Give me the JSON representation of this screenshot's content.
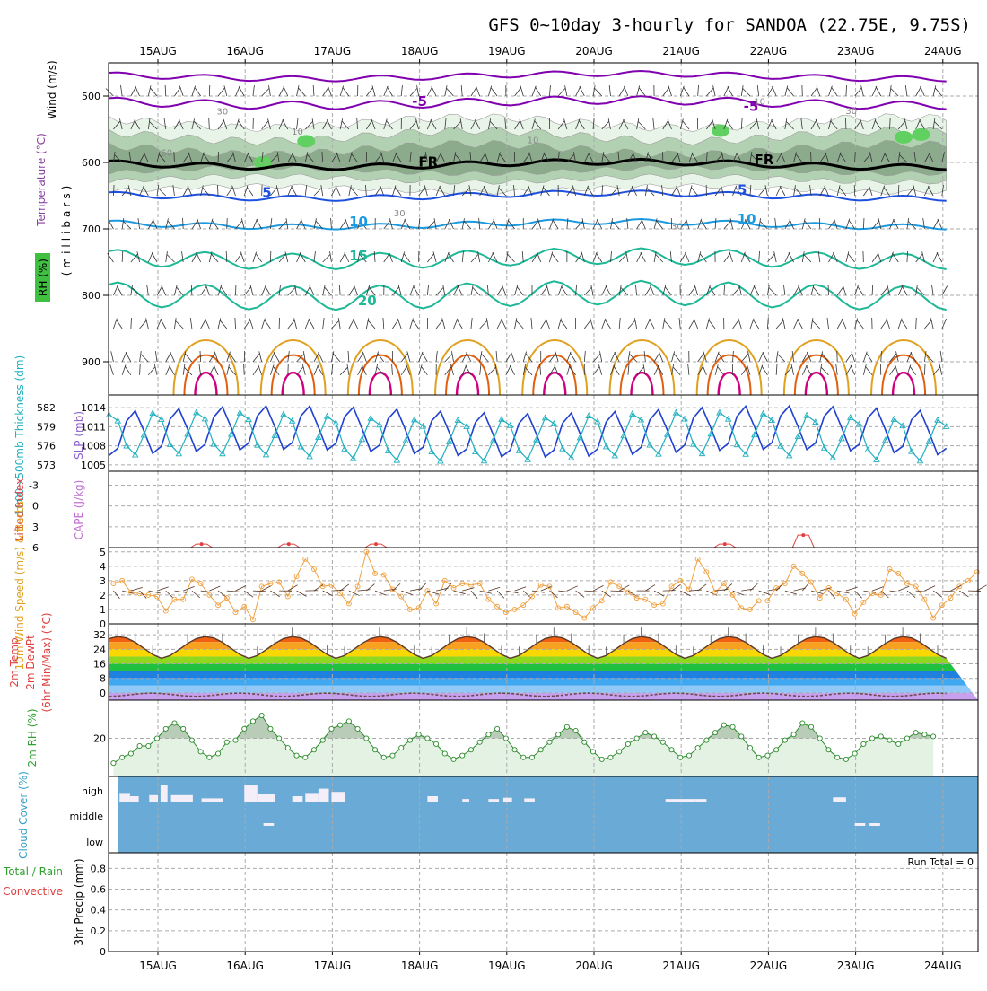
{
  "title": "GFS 0~10day 3-hourly for SANDOA (22.75E, 9.75S)",
  "dates": [
    "15AUG",
    "16AUG",
    "17AUG",
    "18AUG",
    "19AUG",
    "20AUG",
    "21AUG",
    "22AUG",
    "23AUG",
    "24AUG"
  ],
  "colors": {
    "purple": "#8000b0",
    "freeze": "#000000",
    "blue": "#1e50e0",
    "sky": "#1c9ae0",
    "teal": "#1eb896",
    "orange": "#e0a020",
    "darkorange": "#e06010",
    "magenta": "#d00080",
    "rh_light": "#e8f4e8",
    "rh_mid": "#b0d0b0",
    "rh_dark": "#8aaa8a",
    "rh_green": "#60d060",
    "slp": "#2040d0",
    "thick": "#20b0c0",
    "wind": "#f0a040",
    "li": "#e04040",
    "cloud": "#6aaad6",
    "cloud_bar": "#f4eef8",
    "rh2m": "#2a8a2a"
  },
  "chart_data": [
    {
      "type": "contour",
      "panel": "upper-air",
      "ylabel": "(millibars)",
      "side_labels": [
        "Wind (m/s)",
        "Temperature (°C)",
        "RH (%)"
      ],
      "yticks": [
        500,
        600,
        700,
        800,
        900
      ],
      "ylim": [
        450,
        950
      ],
      "contour_labels": [
        {
          "text": "-5",
          "day": 3.0,
          "p": 515
        },
        {
          "text": "-5",
          "day": 6.8,
          "p": 522
        },
        {
          "text": "FR",
          "day": 3.1,
          "p": 606
        },
        {
          "text": "FR",
          "day": 6.95,
          "p": 603
        },
        {
          "text": "5",
          "day": 1.25,
          "p": 652
        },
        {
          "text": "5",
          "day": 6.7,
          "p": 648
        },
        {
          "text": "10",
          "day": 2.3,
          "p": 696
        },
        {
          "text": "10",
          "day": 6.75,
          "p": 692
        },
        {
          "text": "15",
          "day": 2.3,
          "p": 747
        },
        {
          "text": "20",
          "day": 2.4,
          "p": 815
        }
      ],
      "rh_labels": [
        {
          "text": "30",
          "day": 0.74,
          "p": 528
        },
        {
          "text": "10",
          "day": 1.6,
          "p": 558
        },
        {
          "text": "60",
          "day": 0.1,
          "p": 590
        },
        {
          "text": "30",
          "day": 2.77,
          "p": 681
        },
        {
          "text": "10",
          "day": 4.3,
          "p": 571
        },
        {
          "text": "30",
          "day": 5.95,
          "p": 701
        },
        {
          "text": "10",
          "day": 6.9,
          "p": 513
        },
        {
          "text": "30",
          "day": 7.95,
          "p": 527
        }
      ]
    },
    {
      "type": "line",
      "panel": "slp-thickness",
      "side_labels": [
        "1000~500mb Thickness (dm)",
        "SLP (mb)"
      ],
      "left_ticks": [
        582,
        579,
        576,
        573
      ],
      "right_ticks": [
        1014,
        1011,
        1008,
        1005
      ],
      "ylim": [
        1004,
        1016
      ],
      "series": [
        {
          "name": "SLP",
          "period_days": 0.5,
          "base": 1010.2,
          "amp": 3.6,
          "phase_day": 0.22
        },
        {
          "name": "Thickness",
          "period_days": 0.5,
          "base": 1009.5,
          "amp": 3.4,
          "phase_day": 0.47
        }
      ]
    },
    {
      "type": "line",
      "panel": "cape-li",
      "side_labels": [
        "Lifted Index",
        "CAPE (J/kg)"
      ],
      "yticks": [
        -3,
        0,
        3,
        6
      ],
      "yticks_display": [
        "-3",
        "0",
        "3",
        "6"
      ],
      "ylim": [
        -5,
        6
      ],
      "li_peaks": [
        {
          "day": 0.5,
          "value": 5.5
        },
        {
          "day": 1.5,
          "value": 5.5
        },
        {
          "day": 2.5,
          "value": 5.5
        },
        {
          "day": 6.5,
          "value": 5.5
        },
        {
          "day": 7.4,
          "value": 4.2
        }
      ]
    },
    {
      "type": "line",
      "panel": "wind10m",
      "side_labels": [
        "10m Wind Speed (m/s) & Barbs"
      ],
      "yticks": [
        0,
        1,
        2,
        3,
        4,
        5
      ],
      "ylim": [
        0,
        5.3
      ],
      "speeds": [
        2.8,
        3.0,
        2.2,
        2.1,
        2.0,
        1.9,
        0.9,
        1.7,
        1.7,
        3.1,
        2.8,
        2.0,
        1.3,
        1.8,
        0.8,
        1.2,
        0.3,
        2.6,
        2.8,
        2.9,
        1.9,
        3.3,
        4.5,
        3.8,
        2.6,
        2.7,
        2.1,
        1.4,
        2.6,
        5.0,
        3.5,
        3.4,
        2.4,
        1.9,
        1.0,
        1.1,
        2.3,
        1.4,
        3.0,
        2.5,
        2.8,
        2.7,
        2.8,
        1.7,
        1.2,
        0.8,
        1.0,
        1.3,
        1.9,
        2.7,
        2.6,
        1.1,
        1.2,
        0.8,
        0.4,
        1.1,
        1.6,
        2.9,
        2.6,
        2.2,
        1.8,
        1.7,
        1.3,
        1.4,
        2.6,
        3.0,
        2.4,
        4.5,
        3.6,
        2.2,
        2.8,
        2.0,
        1.1,
        1.0,
        1.6,
        1.6,
        2.5,
        2.8,
        4.0,
        3.5,
        2.9,
        1.8,
        2.5,
        2.1,
        1.7,
        0.7,
        1.5,
        2.1,
        2.0,
        3.8,
        3.5,
        2.8,
        2.6,
        1.7,
        0.4,
        1.3,
        1.8,
        2.6,
        3.0,
        3.6
      ]
    },
    {
      "type": "area",
      "panel": "temp2m",
      "side_labels": [
        "2m Temp",
        "2m DewPt",
        "(6hr Min/Max) (°C)"
      ],
      "yticks": [
        0,
        8,
        16,
        24,
        32
      ],
      "ylim": [
        -4,
        38
      ],
      "temp": {
        "min": 19,
        "max": 31,
        "peak_hour_fraction": 0.55
      },
      "dewpt": {
        "mean": -1.0,
        "amp": 0.9
      },
      "bands": [
        {
          "from": 32,
          "to": 40,
          "color": "#e03010"
        },
        {
          "from": 28,
          "to": 32,
          "color": "#f06010"
        },
        {
          "from": 24,
          "to": 28,
          "color": "#f8a020"
        },
        {
          "from": 20,
          "to": 24,
          "color": "#f8d800"
        },
        {
          "from": 16,
          "to": 20,
          "color": "#90d820"
        },
        {
          "from": 12,
          "to": 16,
          "color": "#20c040"
        },
        {
          "from": 8,
          "to": 12,
          "color": "#2080e0"
        },
        {
          "from": 4,
          "to": 8,
          "color": "#40a8f0"
        },
        {
          "from": 0,
          "to": 4,
          "color": "#90c8f8"
        },
        {
          "from": -8,
          "to": 0,
          "color": "#c8a0f0"
        }
      ]
    },
    {
      "type": "area",
      "panel": "rh2m",
      "side_labels": [
        "2m RH (%)"
      ],
      "yticks": [
        20
      ],
      "ylim": [
        0,
        40
      ],
      "rh": [
        7,
        10,
        12,
        16,
        16,
        20,
        25,
        28,
        25,
        19,
        13,
        10,
        12,
        18,
        19,
        25,
        29,
        32,
        25,
        20,
        15,
        11,
        10,
        14,
        19,
        25,
        27,
        29,
        25,
        20,
        14,
        10,
        11,
        15,
        19,
        22,
        20,
        17,
        12,
        9,
        11,
        14,
        18,
        22,
        25,
        20,
        14,
        10,
        10,
        14,
        18,
        22,
        26,
        24,
        18,
        13,
        9,
        10,
        13,
        17,
        20,
        23,
        21,
        18,
        14,
        10,
        11,
        15,
        19,
        23,
        27,
        26,
        21,
        15,
        10,
        11,
        14,
        19,
        22,
        28,
        26,
        20,
        14,
        10,
        9,
        12,
        17,
        20,
        21,
        19,
        17,
        20,
        23,
        22,
        21
      ]
    },
    {
      "type": "bar",
      "panel": "cloud",
      "side_labels": [
        "Cloud Cover (%)"
      ],
      "levels": [
        "high",
        "middle",
        "low"
      ],
      "high_bars": [
        {
          "day": 0.12,
          "len": 0.12,
          "h": 0.4
        },
        {
          "day": 0.24,
          "len": 0.1,
          "h": 0.25
        },
        {
          "day": 0.46,
          "len": 0.1,
          "h": 0.3
        },
        {
          "day": 0.59,
          "len": 0.08,
          "h": 0.75
        },
        {
          "day": 0.71,
          "len": 0.25,
          "h": 0.3
        },
        {
          "day": 1.06,
          "len": 0.25,
          "h": 0.15
        },
        {
          "day": 1.55,
          "len": 0.15,
          "h": 0.75
        },
        {
          "day": 1.7,
          "len": 0.2,
          "h": 0.35
        },
        {
          "day": 2.1,
          "len": 0.12,
          "h": 0.25
        },
        {
          "day": 2.25,
          "len": 0.15,
          "h": 0.4
        },
        {
          "day": 2.4,
          "len": 0.12,
          "h": 0.6
        },
        {
          "day": 2.55,
          "len": 0.15,
          "h": 0.45
        },
        {
          "day": 3.65,
          "len": 0.12,
          "h": 0.25
        },
        {
          "day": 4.05,
          "len": 0.08,
          "h": 0.12
        },
        {
          "day": 4.35,
          "len": 0.12,
          "h": 0.12
        },
        {
          "day": 4.52,
          "len": 0.1,
          "h": 0.18
        },
        {
          "day": 4.76,
          "len": 0.12,
          "h": 0.15
        },
        {
          "day": 6.38,
          "len": 0.35,
          "h": 0.12
        },
        {
          "day": 6.73,
          "len": 0.12,
          "h": 0.12
        },
        {
          "day": 8.3,
          "len": 0.15,
          "h": 0.2
        }
      ],
      "low_bars": [
        {
          "day": 1.77,
          "len": 0.12
        },
        {
          "day": 8.55,
          "len": 0.12
        },
        {
          "day": 8.72,
          "len": 0.12
        }
      ]
    },
    {
      "type": "bar",
      "panel": "precip",
      "side_labels": [
        "3hr Precip (mm)",
        "Total / Rain",
        "Convective"
      ],
      "yticks": [
        0,
        0.2,
        0.4,
        0.6,
        0.8
      ],
      "ylim": [
        0,
        0.95
      ],
      "run_total": "Run Total = 0"
    }
  ]
}
